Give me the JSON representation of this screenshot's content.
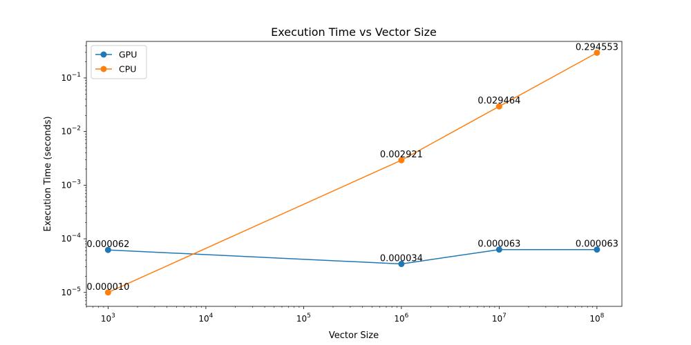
{
  "chart_data": {
    "type": "line",
    "title": "Execution Time vs Vector Size",
    "xlabel": "Vector Size",
    "ylabel": "Execution Time (seconds)",
    "xscale": "log",
    "yscale": "log",
    "xlim": [
      600,
      180000000
    ],
    "ylim": [
      5.5e-06,
      0.48
    ],
    "x_ticks": [
      {
        "value": 1000,
        "base": "10",
        "exp": "3"
      },
      {
        "value": 10000,
        "base": "10",
        "exp": "4"
      },
      {
        "value": 100000,
        "base": "10",
        "exp": "5"
      },
      {
        "value": 1000000,
        "base": "10",
        "exp": "6"
      },
      {
        "value": 10000000,
        "base": "10",
        "exp": "7"
      },
      {
        "value": 100000000,
        "base": "10",
        "exp": "8"
      }
    ],
    "y_ticks": [
      {
        "value": 1e-05,
        "base": "10",
        "exp": "−5"
      },
      {
        "value": 0.0001,
        "base": "10",
        "exp": "−4"
      },
      {
        "value": 0.001,
        "base": "10",
        "exp": "−3"
      },
      {
        "value": 0.01,
        "base": "10",
        "exp": "−2"
      },
      {
        "value": 0.1,
        "base": "10",
        "exp": "−1"
      }
    ],
    "grid": false,
    "legend_position": "top-left",
    "series": [
      {
        "name": "GPU",
        "color": "#1f77b4",
        "x": [
          1000,
          1000000,
          10000000,
          100000000
        ],
        "y": [
          6.2e-05,
          3.4e-05,
          6.3e-05,
          6.3e-05
        ],
        "labels": [
          "0.000062",
          "0.000034",
          "0.000063",
          "0.000063"
        ]
      },
      {
        "name": "CPU",
        "color": "#ff7f0e",
        "x": [
          1000,
          1000000,
          10000000,
          100000000
        ],
        "y": [
          1e-05,
          0.002921,
          0.029464,
          0.294553
        ],
        "labels": [
          "0.000010",
          "0.002921",
          "0.029464",
          "0.294553"
        ]
      }
    ]
  }
}
